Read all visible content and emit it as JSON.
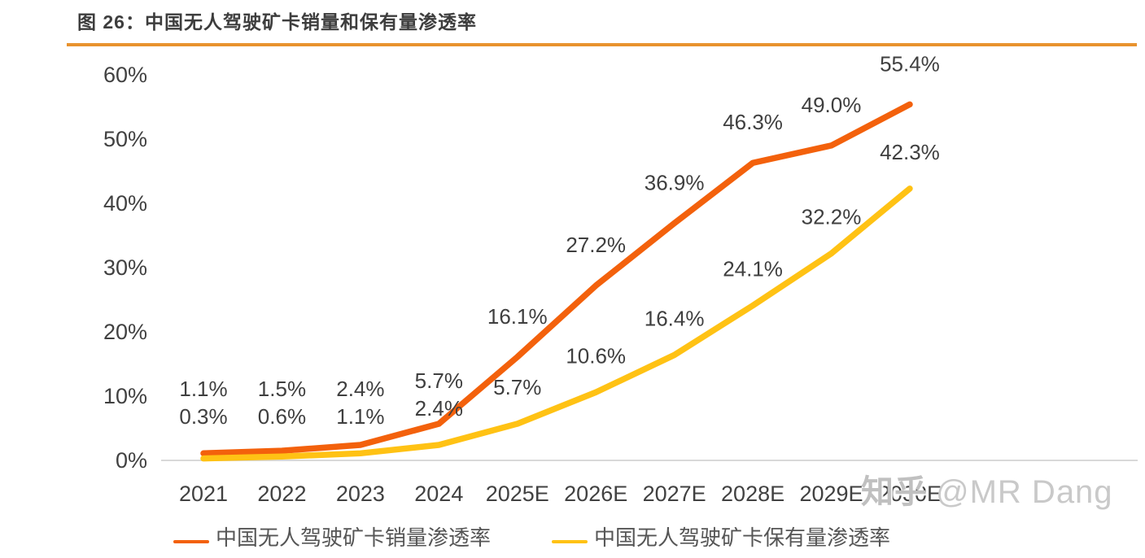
{
  "figure": {
    "title": "图 26：中国无人驾驶矿卡销量和保有量渗透率"
  },
  "watermark": {
    "brand": "知乎",
    "handle": "@MR Dang"
  },
  "colors": {
    "accent_rule": "#e8922e",
    "sales_line": "#f3610c",
    "holdings_line": "#ffc214",
    "axis_line": "#d9d9d9",
    "label_text": "#3f3f3f"
  },
  "chart_data": {
    "type": "line",
    "title": "中国无人驾驶矿卡销量和保有量渗透率",
    "categories": [
      "2021",
      "2022",
      "2023",
      "2024",
      "2025E",
      "2026E",
      "2027E",
      "2028E",
      "2029E",
      "2030E"
    ],
    "series": [
      {
        "name": "中国无人驾驶矿卡销量渗透率",
        "color": "#f3610c",
        "values": [
          1.1,
          1.5,
          2.4,
          5.7,
          16.1,
          27.2,
          36.9,
          46.3,
          49.0,
          55.4
        ]
      },
      {
        "name": "中国无人驾驶矿卡保有量渗透率",
        "color": "#ffc214",
        "values": [
          0.3,
          0.6,
          1.1,
          2.4,
          5.7,
          10.6,
          16.4,
          24.1,
          32.2,
          42.3
        ]
      }
    ],
    "value_suffix": "%",
    "y_ticks": [
      {
        "value": 60,
        "label": "60%"
      },
      {
        "value": 50,
        "label": "50%"
      },
      {
        "value": 40,
        "label": "40%"
      },
      {
        "value": 30,
        "label": "30%"
      },
      {
        "value": 20,
        "label": "20%"
      },
      {
        "value": 10,
        "label": "10%"
      },
      {
        "value": 0,
        "label": "0%"
      }
    ],
    "ylim": [
      0,
      60
    ],
    "grid": false,
    "legend_position": "bottom"
  }
}
